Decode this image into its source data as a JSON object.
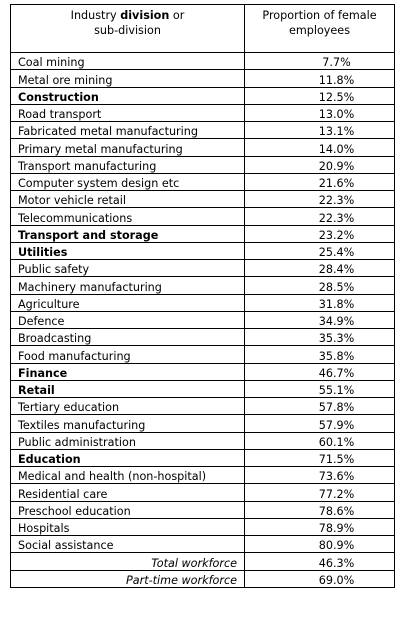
{
  "table": {
    "header": {
      "col1_prefix": "Industry ",
      "col1_bold": "division",
      "col1_suffix": " or",
      "col1_line2": "sub-division",
      "col2_line1": "Proportion of female",
      "col2_line2": "employees"
    },
    "rows": [
      {
        "name": "Coal mining",
        "value": "7.7%",
        "bold": false
      },
      {
        "name": "Metal ore mining",
        "value": "11.8%",
        "bold": false
      },
      {
        "name": "Construction",
        "value": "12.5%",
        "bold": true
      },
      {
        "name": "Road transport",
        "value": "13.0%",
        "bold": false
      },
      {
        "name": "Fabricated metal manufacturing",
        "value": "13.1%",
        "bold": false
      },
      {
        "name": "Primary metal manufacturing",
        "value": "14.0%",
        "bold": false
      },
      {
        "name": "Transport manufacturing",
        "value": "20.9%",
        "bold": false
      },
      {
        "name": "Computer system design etc",
        "value": "21.6%",
        "bold": false
      },
      {
        "name": "Motor vehicle retail",
        "value": "22.3%",
        "bold": false
      },
      {
        "name": "Telecommunications",
        "value": "22.3%",
        "bold": false
      },
      {
        "name": "Transport and storage",
        "value": "23.2%",
        "bold": true
      },
      {
        "name": "Utilities",
        "value": "25.4%",
        "bold": true
      },
      {
        "name": "Public safety",
        "value": "28.4%",
        "bold": false
      },
      {
        "name": "Machinery manufacturing",
        "value": "28.5%",
        "bold": false
      },
      {
        "name": "Agriculture",
        "value": "31.8%",
        "bold": false
      },
      {
        "name": "Defence",
        "value": "34.9%",
        "bold": false
      },
      {
        "name": "Broadcasting",
        "value": "35.3%",
        "bold": false
      },
      {
        "name": "Food manufacturing",
        "value": "35.8%",
        "bold": false
      },
      {
        "name": "Finance",
        "value": "46.7%",
        "bold": true
      },
      {
        "name": "Retail",
        "value": "55.1%",
        "bold": true
      },
      {
        "name": "Tertiary education",
        "value": "57.8%",
        "bold": false
      },
      {
        "name": "Textiles manufacturing",
        "value": "57.9%",
        "bold": false
      },
      {
        "name": "Public administration",
        "value": "60.1%",
        "bold": false
      },
      {
        "name": "Education",
        "value": "71.5%",
        "bold": true
      },
      {
        "name": "Medical and health (non-hospital)",
        "value": "73.6%",
        "bold": false
      },
      {
        "name": "Residential care",
        "value": "77.2%",
        "bold": false
      },
      {
        "name": "Preschool education",
        "value": "78.6%",
        "bold": false
      },
      {
        "name": "Hospitals",
        "value": "78.9%",
        "bold": false
      },
      {
        "name": "Social assistance",
        "value": "80.9%",
        "bold": false
      }
    ],
    "summary_rows": [
      {
        "name": "Total workforce",
        "value": "46.3%"
      },
      {
        "name": "Part-time workforce",
        "value": "69.0%"
      }
    ]
  }
}
